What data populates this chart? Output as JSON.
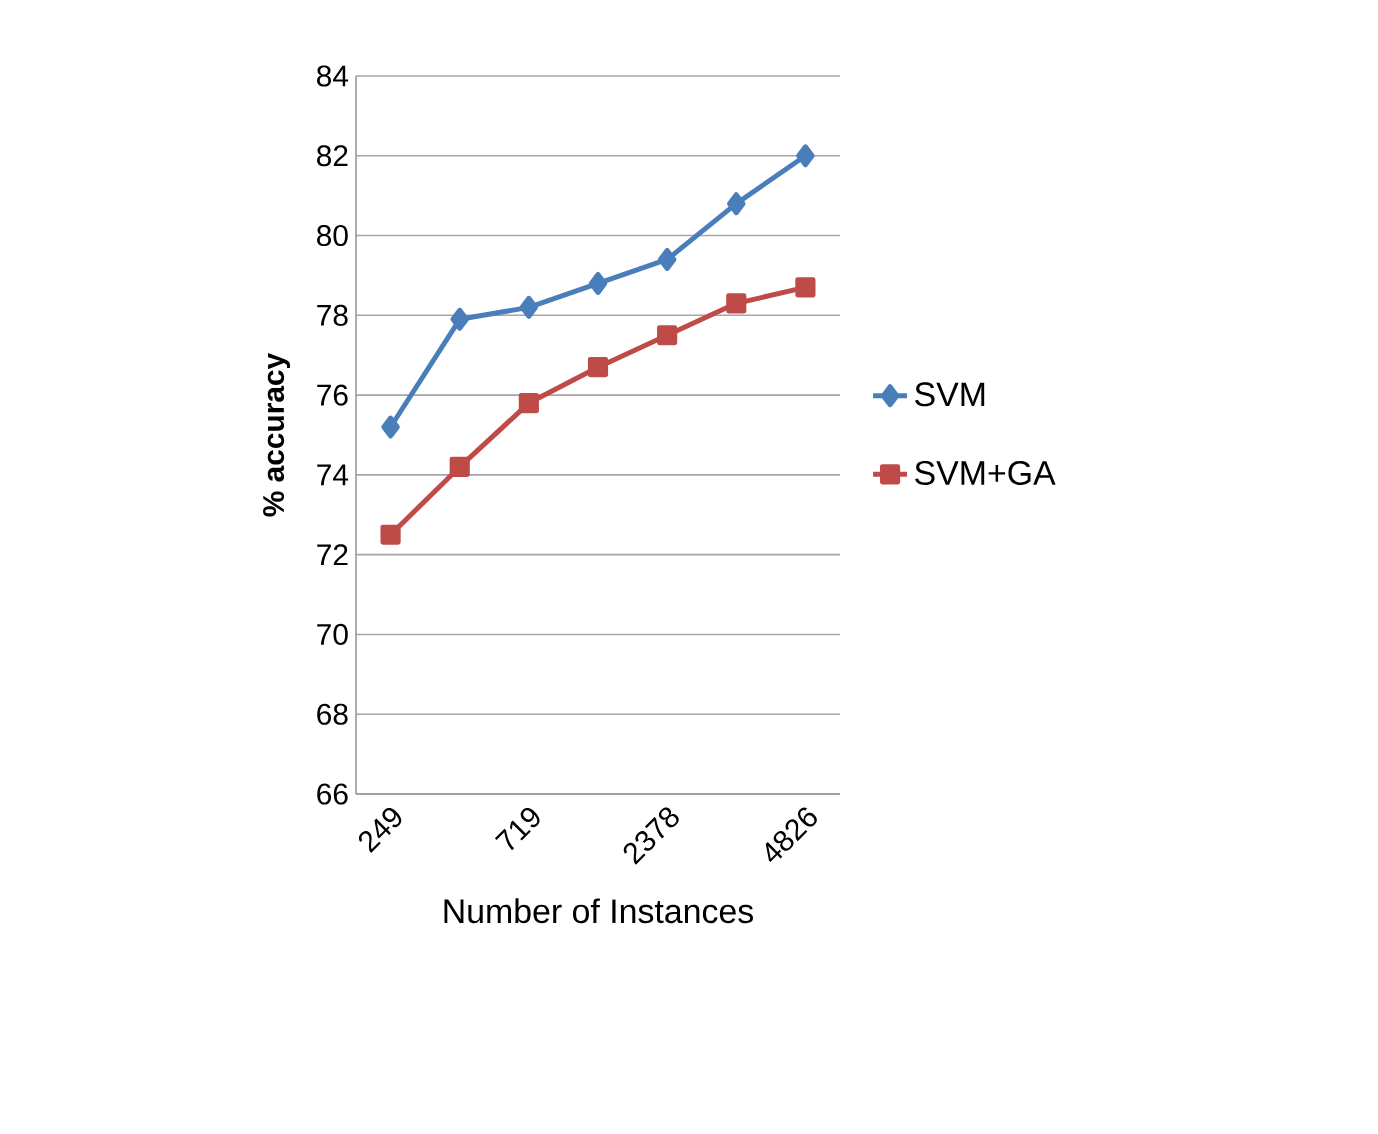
{
  "chart_data": {
    "type": "line",
    "xlabel": "Number of Instances",
    "ylabel": "% accuracy",
    "categories": [
      "249",
      null,
      "719",
      null,
      "2378",
      null,
      "4826"
    ],
    "series": [
      {
        "name": "SVM",
        "color": "#4a7ebb",
        "marker": "diamond",
        "values": [
          75.2,
          77.9,
          78.2,
          78.8,
          79.4,
          80.8,
          82.0
        ]
      },
      {
        "name": "SVM+GA",
        "color": "#be4b48",
        "marker": "square",
        "values": [
          72.5,
          74.2,
          75.8,
          76.7,
          77.5,
          78.3,
          78.7
        ]
      }
    ],
    "ylim": [
      66,
      84
    ],
    "yticks": [
      66,
      68,
      70,
      72,
      74,
      76,
      78,
      80,
      82,
      84
    ],
    "grid": "y",
    "legend": "right"
  }
}
